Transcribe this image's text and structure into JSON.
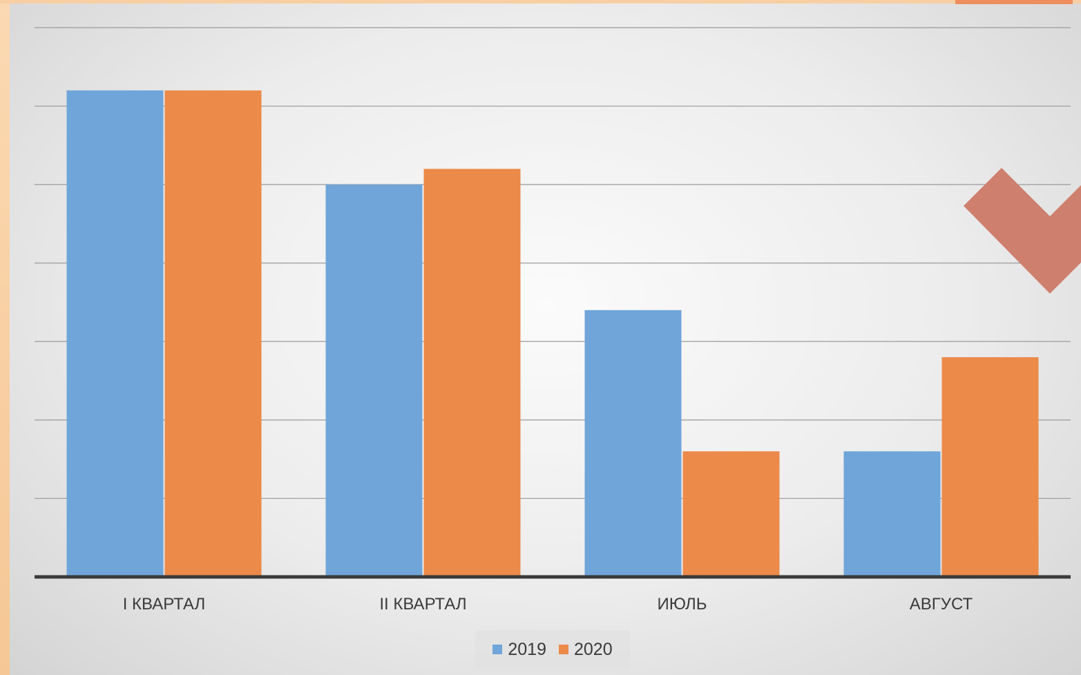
{
  "chart_data": {
    "type": "bar",
    "title": "",
    "xlabel": "",
    "ylabel": "",
    "categories": [
      "I КВАРТАЛ",
      "II КВАРТАЛ",
      "ИЮЛЬ",
      "АВГУСТ"
    ],
    "series": [
      {
        "name": "2019",
        "color": "#6fa5d9",
        "values": [
          6.2,
          5.0,
          3.4,
          1.6
        ]
      },
      {
        "name": "2020",
        "color": "#ec8a4a",
        "values": [
          6.2,
          5.2,
          1.6,
          2.8
        ]
      }
    ],
    "ylim": [
      0,
      7
    ],
    "grid": true,
    "legend_position": "bottom-center"
  },
  "decor": {
    "accent_color": "#cf7f6e",
    "frame_color": "#f9d2a6"
  }
}
